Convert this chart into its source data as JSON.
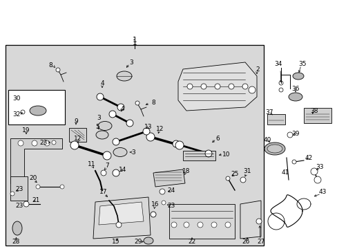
{
  "fig_w": 4.89,
  "fig_h": 3.6,
  "dpi": 100,
  "bg_white": "#ffffff",
  "bg_gray": "#d8d8d8",
  "border_lw": 0.8,
  "part_lw": 0.6,
  "label_fs": 6.5
}
